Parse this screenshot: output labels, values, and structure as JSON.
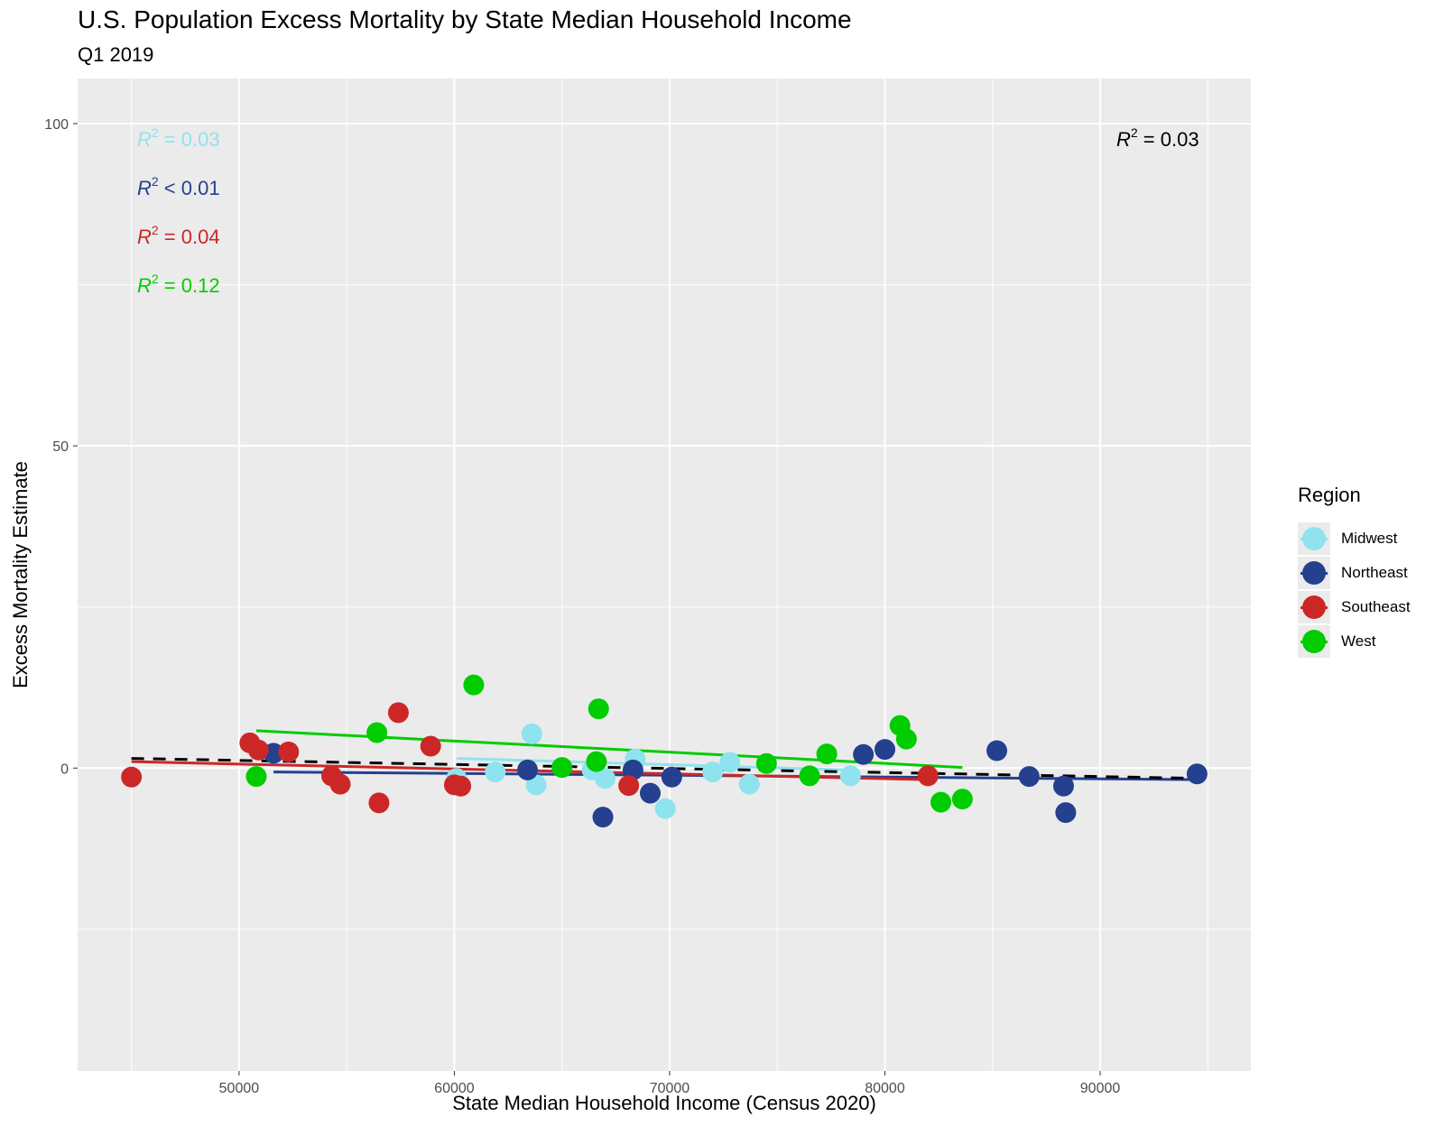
{
  "chart_data": {
    "type": "scatter",
    "title": "U.S. Population Excess Mortality by State Median Household Income",
    "subtitle": "Q1 2019",
    "xlabel": "State Median Household Income (Census 2020)",
    "ylabel": "Excess Mortality Estimate",
    "xlim": [
      42500,
      97000
    ],
    "ylim": [
      -47,
      107
    ],
    "x_ticks": [
      50000,
      60000,
      70000,
      80000,
      90000
    ],
    "y_ticks": [
      0,
      50,
      100
    ],
    "y_minor_ticks": [
      -25,
      25,
      75
    ],
    "legend_title": "Region",
    "legend_position": "right",
    "series": [
      {
        "name": "Midwest",
        "color": "#8fe3ef",
        "points": [
          [
            60100,
            -1.6
          ],
          [
            61900,
            -0.6
          ],
          [
            63600,
            5.3
          ],
          [
            63800,
            -2.6
          ],
          [
            66400,
            -0.3
          ],
          [
            67000,
            -1.6
          ],
          [
            68400,
            1.4
          ],
          [
            69800,
            -6.3
          ],
          [
            72000,
            -0.6
          ],
          [
            72800,
            0.9
          ],
          [
            73700,
            -2.5
          ],
          [
            78400,
            -1.2
          ]
        ],
        "trend": [
          [
            60100,
            1.5
          ],
          [
            78400,
            -0.3
          ]
        ],
        "r2_label": "= 0.03"
      },
      {
        "name": "Northeast",
        "color": "#24408e",
        "points": [
          [
            51600,
            2.3
          ],
          [
            63400,
            -0.3
          ],
          [
            66900,
            -7.6
          ],
          [
            68300,
            -0.3
          ],
          [
            69100,
            -3.9
          ],
          [
            70100,
            -1.4
          ],
          [
            79000,
            2.1
          ],
          [
            80000,
            2.9
          ],
          [
            85200,
            2.7
          ],
          [
            86700,
            -1.3
          ],
          [
            88300,
            -2.8
          ],
          [
            88400,
            -6.9
          ],
          [
            94500,
            -0.9
          ]
        ],
        "trend": [
          [
            51600,
            -0.6
          ],
          [
            94500,
            -1.8
          ]
        ],
        "r2_label": "< 0.01"
      },
      {
        "name": "Southeast",
        "color": "#cc2727",
        "points": [
          [
            45000,
            -1.4
          ],
          [
            50500,
            3.9
          ],
          [
            50900,
            2.8
          ],
          [
            52300,
            2.5
          ],
          [
            54300,
            -1.2
          ],
          [
            54700,
            -2.5
          ],
          [
            56500,
            -5.4
          ],
          [
            57400,
            8.6
          ],
          [
            58900,
            3.4
          ],
          [
            60000,
            -2.6
          ],
          [
            60300,
            -2.8
          ],
          [
            68100,
            -2.7
          ],
          [
            82000,
            -1.2
          ]
        ],
        "trend": [
          [
            45000,
            1.0
          ],
          [
            82000,
            -1.8
          ]
        ],
        "r2_label": "= 0.04"
      },
      {
        "name": "West",
        "color": "#00cc00",
        "points": [
          [
            50800,
            -1.3
          ],
          [
            56400,
            5.5
          ],
          [
            60900,
            12.9
          ],
          [
            65000,
            0.1
          ],
          [
            66600,
            1.0
          ],
          [
            66700,
            9.2
          ],
          [
            74500,
            0.7
          ],
          [
            76500,
            -1.2
          ],
          [
            77300,
            2.2
          ],
          [
            80700,
            6.6
          ],
          [
            81000,
            4.5
          ],
          [
            82600,
            -5.3
          ],
          [
            83600,
            -4.8
          ]
        ],
        "trend": [
          [
            50800,
            5.8
          ],
          [
            83600,
            0.1
          ]
        ],
        "r2_label": "= 0.12"
      }
    ],
    "overall_trend": [
      [
        45000,
        1.5
      ],
      [
        94500,
        -1.6
      ]
    ],
    "overall_r2_label": "= 0.03",
    "r2_symbol": "R",
    "r2_superscript": "2"
  }
}
